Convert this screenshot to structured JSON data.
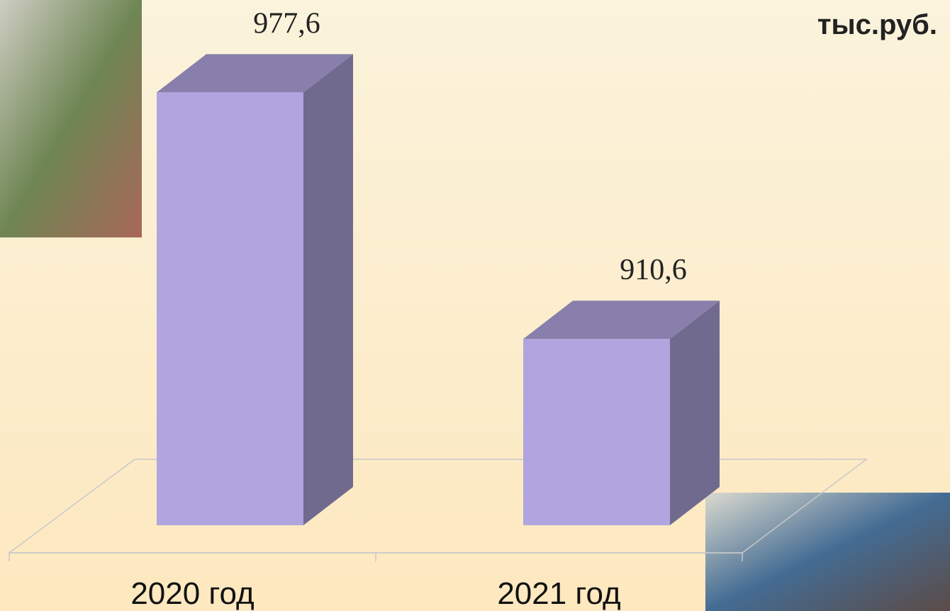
{
  "chart_data": {
    "type": "bar3d",
    "unit": "тыс.руб.",
    "categories": [
      "2020 год",
      "2021 год"
    ],
    "values": [
      977.6,
      910.6
    ],
    "value_labels": [
      "977,6",
      "910,6"
    ],
    "color": "#b1a5df",
    "ylim": [
      860,
      1000
    ]
  }
}
